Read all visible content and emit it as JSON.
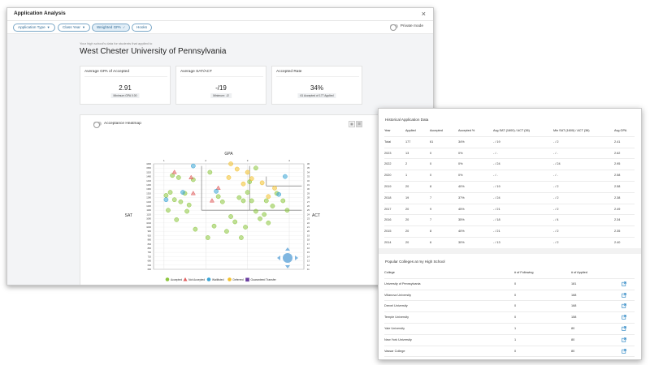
{
  "main_window": {
    "title": "Application Analysis",
    "close_label": "×",
    "filters": [
      {
        "label": "Application Type",
        "has_caret": true,
        "active": false
      },
      {
        "label": "Class Year",
        "has_caret": true,
        "active": false
      },
      {
        "label": "Weighted GPA",
        "has_check": true,
        "active": true
      },
      {
        "label": "Hooks",
        "has_caret": false,
        "active": false
      }
    ],
    "private_mode_label": "Private mode",
    "subtitle": "Your high school's data for students that applied to",
    "school_name": "West Chester University of Pennsylvania",
    "stats": [
      {
        "label": "Average GPA of Accepted",
        "value": "2.91",
        "note": "Minimum GPA 0.00"
      },
      {
        "label": "Average SAT/ACT",
        "value": "-/19",
        "note": "Minimum: -/2"
      },
      {
        "label": "Accepted Rate",
        "value": "34%",
        "note": "61 Accepted of 177 Applied"
      }
    ],
    "heatmap": {
      "toggle_label": "Acceptance Heatmap",
      "x_title": "GPA",
      "y_left_title": "SAT",
      "y_right_title": "ACT",
      "gpa_ticks": [
        "1",
        "2",
        "3",
        "4"
      ],
      "sat_ticks": [
        "1600",
        "1560",
        "1520",
        "1480",
        "1440",
        "1400",
        "1360",
        "1320",
        "1280",
        "1240",
        "1200",
        "1160",
        "1120",
        "1080",
        "1040",
        "1000",
        "960",
        "920",
        "880",
        "840",
        "800",
        "760",
        "720",
        "680",
        "640",
        "600"
      ],
      "act_ticks": [
        "36",
        "35",
        "34",
        "33",
        "32",
        "31",
        "30",
        "29",
        "28",
        "27",
        "26",
        "25",
        "24",
        "23",
        "22",
        "21",
        "20",
        "19",
        "18",
        "17",
        "16",
        "15",
        "14",
        "13",
        "12",
        "11"
      ],
      "legend": [
        {
          "label": "Accepted",
          "color": "#8dc63f",
          "shape": "circle"
        },
        {
          "label": "Not Accepted",
          "color": "#e05d5d",
          "shape": "triangle"
        },
        {
          "label": "Waitlisted",
          "color": "#3ba5d6",
          "shape": "circle"
        },
        {
          "label": "Deferred",
          "color": "#f2c12e",
          "shape": "circle"
        },
        {
          "label": "Guaranteed Transfer",
          "color": "#6b3fa0",
          "shape": "square"
        }
      ],
      "points": [
        {
          "gpa": 1.2,
          "sat": 1490,
          "s": "accepted"
        },
        {
          "gpa": 1.35,
          "sat": 1470,
          "s": "accepted"
        },
        {
          "gpa": 1.5,
          "sat": 1320,
          "s": "accepted"
        },
        {
          "gpa": 1.6,
          "sat": 1210,
          "s": "accepted"
        },
        {
          "gpa": 1.7,
          "sat": 1450,
          "s": "accepted"
        },
        {
          "gpa": 1.25,
          "sat": 1260,
          "s": "accepted"
        },
        {
          "gpa": 1.4,
          "sat": 1240,
          "s": "accepted"
        },
        {
          "gpa": 1.15,
          "sat": 1330,
          "s": "accepted"
        },
        {
          "gpa": 1.05,
          "sat": 1300,
          "s": "accepted"
        },
        {
          "gpa": 1.3,
          "sat": 1070,
          "s": "accepted"
        },
        {
          "gpa": 1.55,
          "sat": 1150,
          "s": "accepted"
        },
        {
          "gpa": 1.75,
          "sat": 980,
          "s": "accepted"
        },
        {
          "gpa": 2.1,
          "sat": 1520,
          "s": "accepted"
        },
        {
          "gpa": 2.3,
          "sat": 1290,
          "s": "accepted"
        },
        {
          "gpa": 2.4,
          "sat": 1240,
          "s": "accepted"
        },
        {
          "gpa": 2.6,
          "sat": 1100,
          "s": "accepted"
        },
        {
          "gpa": 2.7,
          "sat": 1050,
          "s": "accepted"
        },
        {
          "gpa": 2.5,
          "sat": 960,
          "s": "accepted"
        },
        {
          "gpa": 2.8,
          "sat": 1280,
          "s": "accepted"
        },
        {
          "gpa": 2.9,
          "sat": 1250,
          "s": "accepted"
        },
        {
          "gpa": 3.0,
          "sat": 1330,
          "s": "accepted"
        },
        {
          "gpa": 3.1,
          "sat": 1250,
          "s": "accepted"
        },
        {
          "gpa": 3.2,
          "sat": 1150,
          "s": "accepted"
        },
        {
          "gpa": 3.3,
          "sat": 1080,
          "s": "accepted"
        },
        {
          "gpa": 3.45,
          "sat": 1250,
          "s": "accepted"
        },
        {
          "gpa": 3.6,
          "sat": 1200,
          "s": "accepted"
        },
        {
          "gpa": 3.7,
          "sat": 1320,
          "s": "accepted"
        },
        {
          "gpa": 3.85,
          "sat": 1250,
          "s": "accepted"
        },
        {
          "gpa": 3.95,
          "sat": 1160,
          "s": "accepted"
        },
        {
          "gpa": 3.5,
          "sat": 1040,
          "s": "accepted"
        },
        {
          "gpa": 2.95,
          "sat": 1000,
          "s": "accepted"
        },
        {
          "gpa": 2.2,
          "sat": 1010,
          "s": "accepted"
        },
        {
          "gpa": 2.85,
          "sat": 900,
          "s": "accepted"
        },
        {
          "gpa": 2.05,
          "sat": 900,
          "s": "accepted"
        },
        {
          "gpa": 3.05,
          "sat": 1430,
          "s": "accepted"
        },
        {
          "gpa": 3.2,
          "sat": 1560,
          "s": "accepted"
        },
        {
          "gpa": 1.1,
          "sat": 1160,
          "s": "accepted"
        },
        {
          "gpa": 3.4,
          "sat": 1120,
          "s": "accepted"
        },
        {
          "gpa": 1.25,
          "sat": 1520,
          "s": "not_accepted"
        },
        {
          "gpa": 1.65,
          "sat": 1470,
          "s": "not_accepted"
        },
        {
          "gpa": 2.3,
          "sat": 1370,
          "s": "not_accepted"
        },
        {
          "gpa": 1.7,
          "sat": 1320,
          "s": "not_accepted"
        },
        {
          "gpa": 2.15,
          "sat": 1250,
          "s": "not_accepted"
        },
        {
          "gpa": 1.45,
          "sat": 1330,
          "s": "waitlisted"
        },
        {
          "gpa": 1.05,
          "sat": 1260,
          "s": "waitlisted"
        },
        {
          "gpa": 1.7,
          "sat": 1580,
          "s": "waitlisted"
        },
        {
          "gpa": 3.9,
          "sat": 1480,
          "s": "waitlisted"
        },
        {
          "gpa": 3.75,
          "sat": 1310,
          "s": "waitlisted"
        },
        {
          "gpa": 2.25,
          "sat": 1340,
          "s": "waitlisted"
        },
        {
          "gpa": 2.6,
          "sat": 1600,
          "s": "deferred"
        },
        {
          "gpa": 2.75,
          "sat": 1550,
          "s": "deferred"
        },
        {
          "gpa": 3.0,
          "sat": 1520,
          "s": "deferred"
        },
        {
          "gpa": 3.1,
          "sat": 1460,
          "s": "deferred"
        },
        {
          "gpa": 2.9,
          "sat": 1410,
          "s": "deferred"
        },
        {
          "gpa": 3.35,
          "sat": 1420,
          "s": "deferred"
        },
        {
          "gpa": 3.5,
          "sat": 1290,
          "s": "deferred"
        },
        {
          "gpa": 3.65,
          "sat": 1370,
          "s": "deferred"
        },
        {
          "gpa": 2.55,
          "sat": 1470,
          "s": "deferred"
        }
      ]
    }
  },
  "side_window": {
    "history_title": "Historical Application Data",
    "history_headers": [
      "Year",
      "Applied",
      "Accepted",
      "Accepted %",
      "Avg SAT (1600) / ACT (36)",
      "Min SAT (1600) / ACT (36)",
      "Avg GPA"
    ],
    "history_rows": [
      [
        "Total",
        "177",
        "61",
        "34%",
        "- / 19",
        "- / 2",
        "2.41"
      ],
      [
        "2023",
        "13",
        "0",
        "0%",
        "- / -",
        "- / -",
        "2.62"
      ],
      [
        "2022",
        "2",
        "0",
        "0%",
        "- / 24",
        "- / 24",
        "2.95"
      ],
      [
        "2020",
        "1",
        "0",
        "0%",
        "- / -",
        "- / -",
        "2.58"
      ],
      [
        "2019",
        "20",
        "8",
        "40%",
        "- / 19",
        "- / 2",
        "2.58"
      ],
      [
        "2018",
        "19",
        "7",
        "37%",
        "- / 24",
        "- / 2",
        "2.38"
      ],
      [
        "2017",
        "20",
        "9",
        "45%",
        "- / 21",
        "- / 2",
        "2.49"
      ],
      [
        "2016",
        "20",
        "7",
        "35%",
        "- / 18",
        "- / 4",
        "2.34"
      ],
      [
        "2015",
        "20",
        "8",
        "40%",
        "- / 21",
        "- / 2",
        "2.35"
      ],
      [
        "2014",
        "20",
        "6",
        "30%",
        "- / 13",
        "- / 2",
        "2.40"
      ]
    ],
    "popular_title": "Popular Colleges at my High School",
    "popular_headers": [
      "College",
      "# of Following",
      "# of Applied"
    ],
    "popular_rows": [
      [
        "University of Pennsylvania",
        "0",
        "181"
      ],
      [
        "Villanova University",
        "0",
        "168"
      ],
      [
        "Drexel University",
        "0",
        "168"
      ],
      [
        "Temple University",
        "0",
        "158"
      ],
      [
        "Yale University",
        "1",
        "80"
      ],
      [
        "New York University",
        "1",
        "80"
      ],
      [
        "Vassar College",
        "0",
        "80"
      ]
    ]
  }
}
